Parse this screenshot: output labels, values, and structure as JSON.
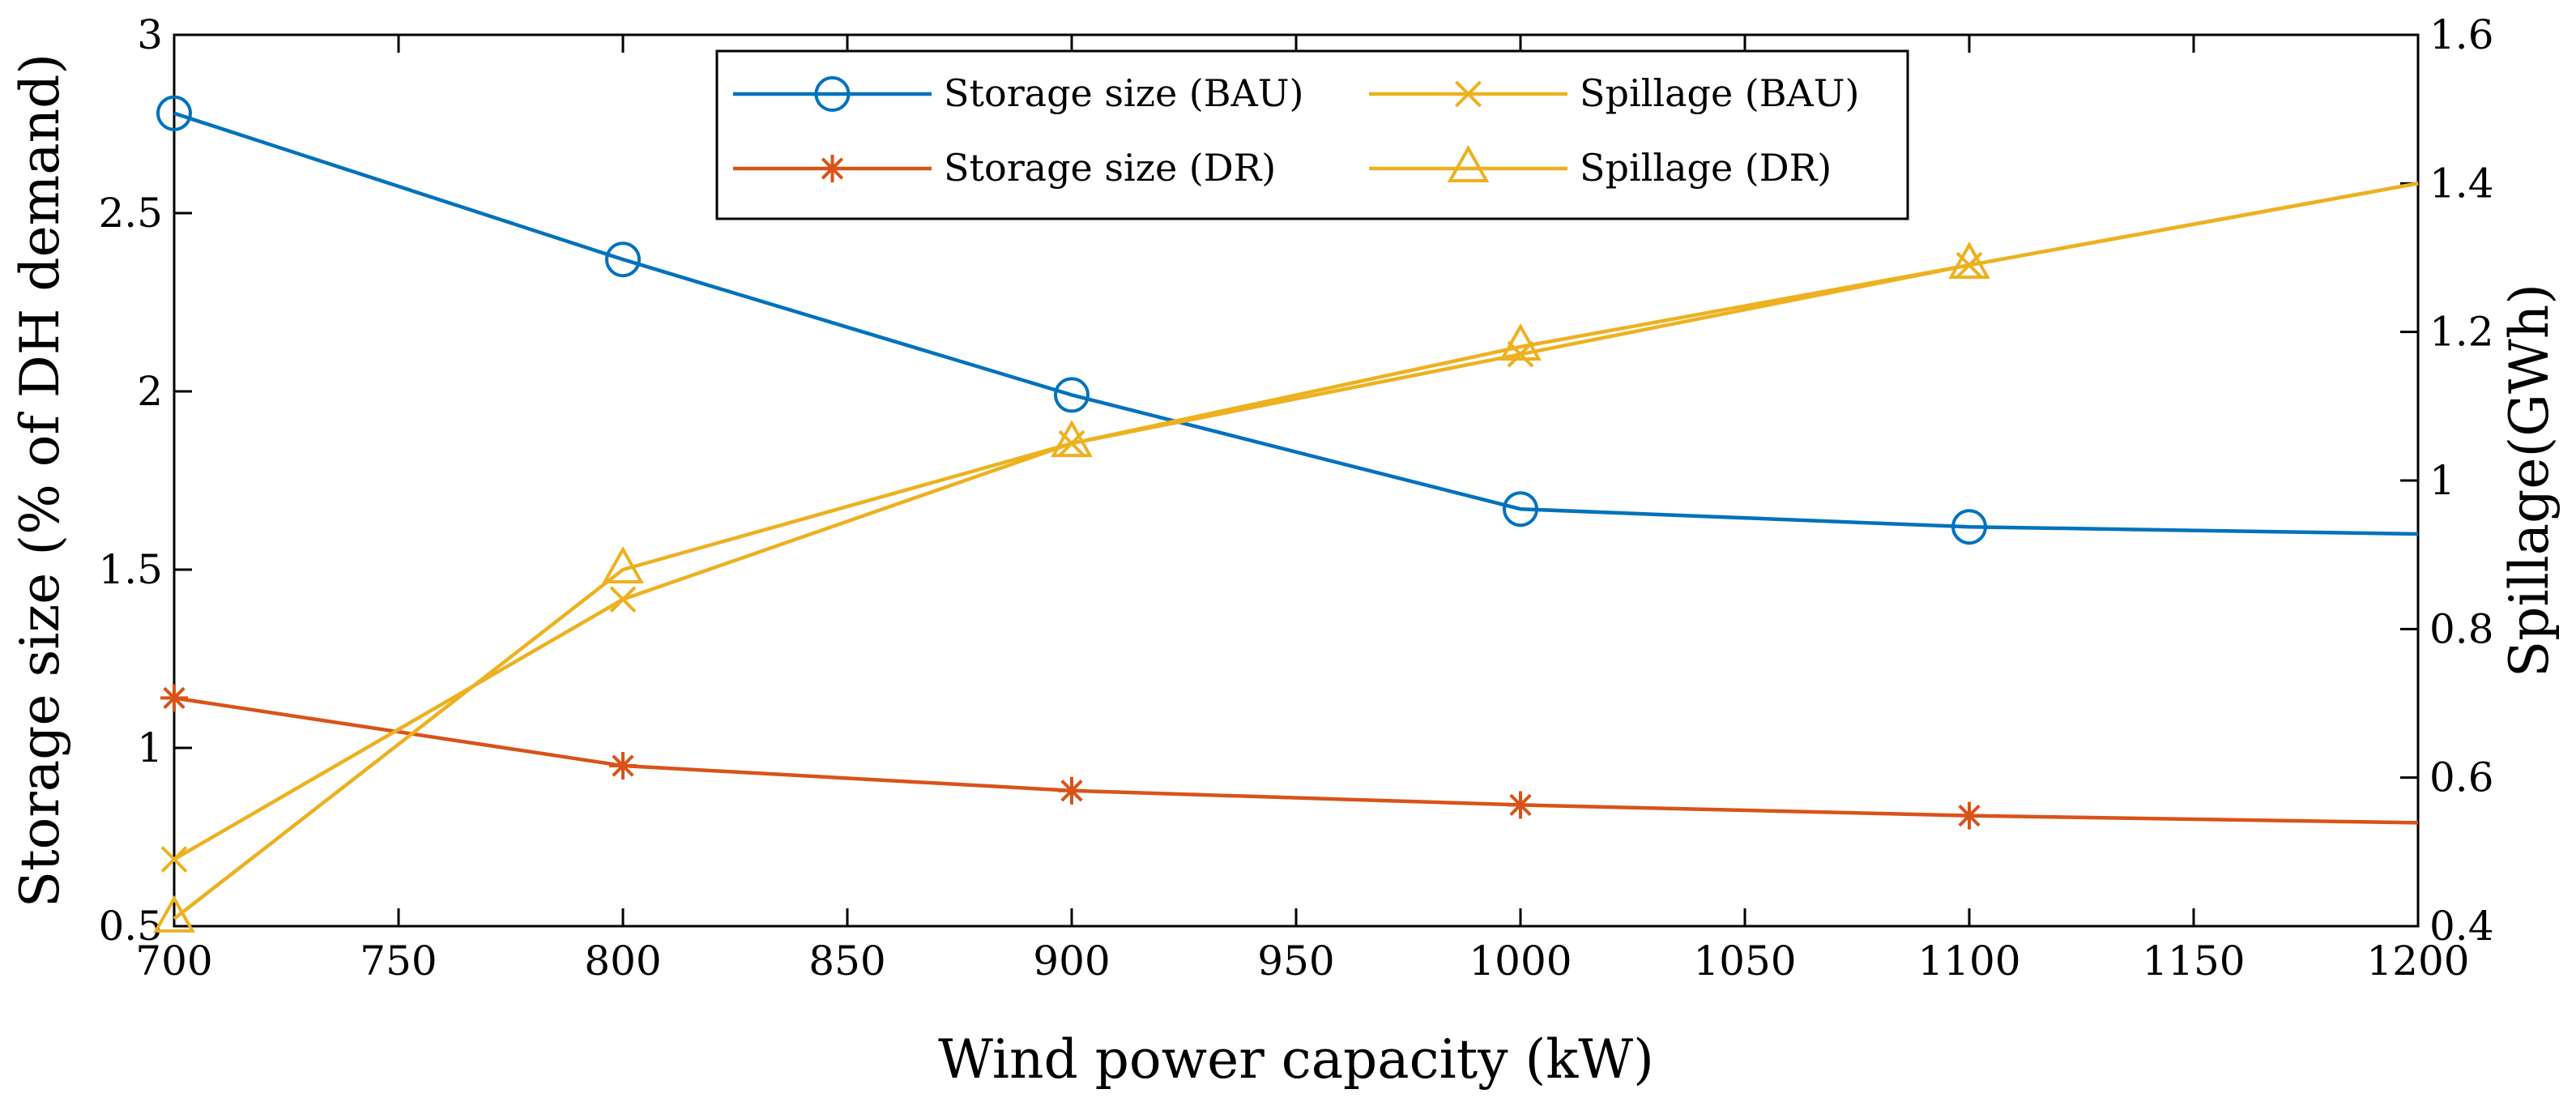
{
  "chart_data": {
    "type": "line",
    "xlabel": "Wind power capacity (kW)",
    "ylabel_left": "Storage size (% of DH demand)",
    "ylabel_right": "Spillage(GWh)",
    "xlim": [
      700,
      1200
    ],
    "ylim_left": [
      0.5,
      3
    ],
    "ylim_right": [
      0.4,
      1.6
    ],
    "x_ticks": [
      700,
      750,
      800,
      850,
      900,
      950,
      1000,
      1050,
      1100,
      1150,
      1200
    ],
    "y_ticks_left": [
      "0.5",
      "1",
      "1.5",
      "2",
      "2.5",
      "3"
    ],
    "y_ticks_right": [
      "0.4",
      "0.6",
      "0.8",
      "1",
      "1.2",
      "1.4",
      "1.6"
    ],
    "grid": false,
    "legend_position": "top-center",
    "series": [
      {
        "name": "Storage size (BAU)",
        "axis": "left",
        "color": "#0072BD",
        "marker": "circle",
        "x": [
          700,
          800,
          900,
          1000,
          1100,
          1200
        ],
        "values": [
          2.78,
          2.37,
          1.99,
          1.67,
          1.62,
          1.6
        ],
        "marker_x": [
          700,
          800,
          900,
          1000,
          1100
        ]
      },
      {
        "name": "Storage size (DR)",
        "axis": "left",
        "color": "#D95319",
        "marker": "asterisk",
        "x": [
          700,
          800,
          900,
          1000,
          1100,
          1200
        ],
        "values": [
          1.14,
          0.95,
          0.88,
          0.84,
          0.81,
          0.79
        ],
        "marker_x": [
          700,
          800,
          900,
          1000,
          1100
        ]
      },
      {
        "name": "Spillage (BAU)",
        "axis": "right",
        "color": "#EDB120",
        "marker": "x",
        "x": [
          700,
          800,
          900,
          1000,
          1100,
          1200
        ],
        "values": [
          0.49,
          0.84,
          1.05,
          1.17,
          1.29,
          1.4
        ],
        "marker_x": [
          700,
          800,
          900,
          1000,
          1100
        ]
      },
      {
        "name": "Spillage (DR)",
        "axis": "right",
        "color": "#EDB120",
        "marker": "triangle",
        "x": [
          700,
          800,
          900,
          1000,
          1100,
          1200
        ],
        "values": [
          0.41,
          0.88,
          1.05,
          1.18,
          1.29,
          1.4
        ],
        "marker_x": [
          700,
          800,
          900,
          1000,
          1100
        ]
      }
    ]
  }
}
